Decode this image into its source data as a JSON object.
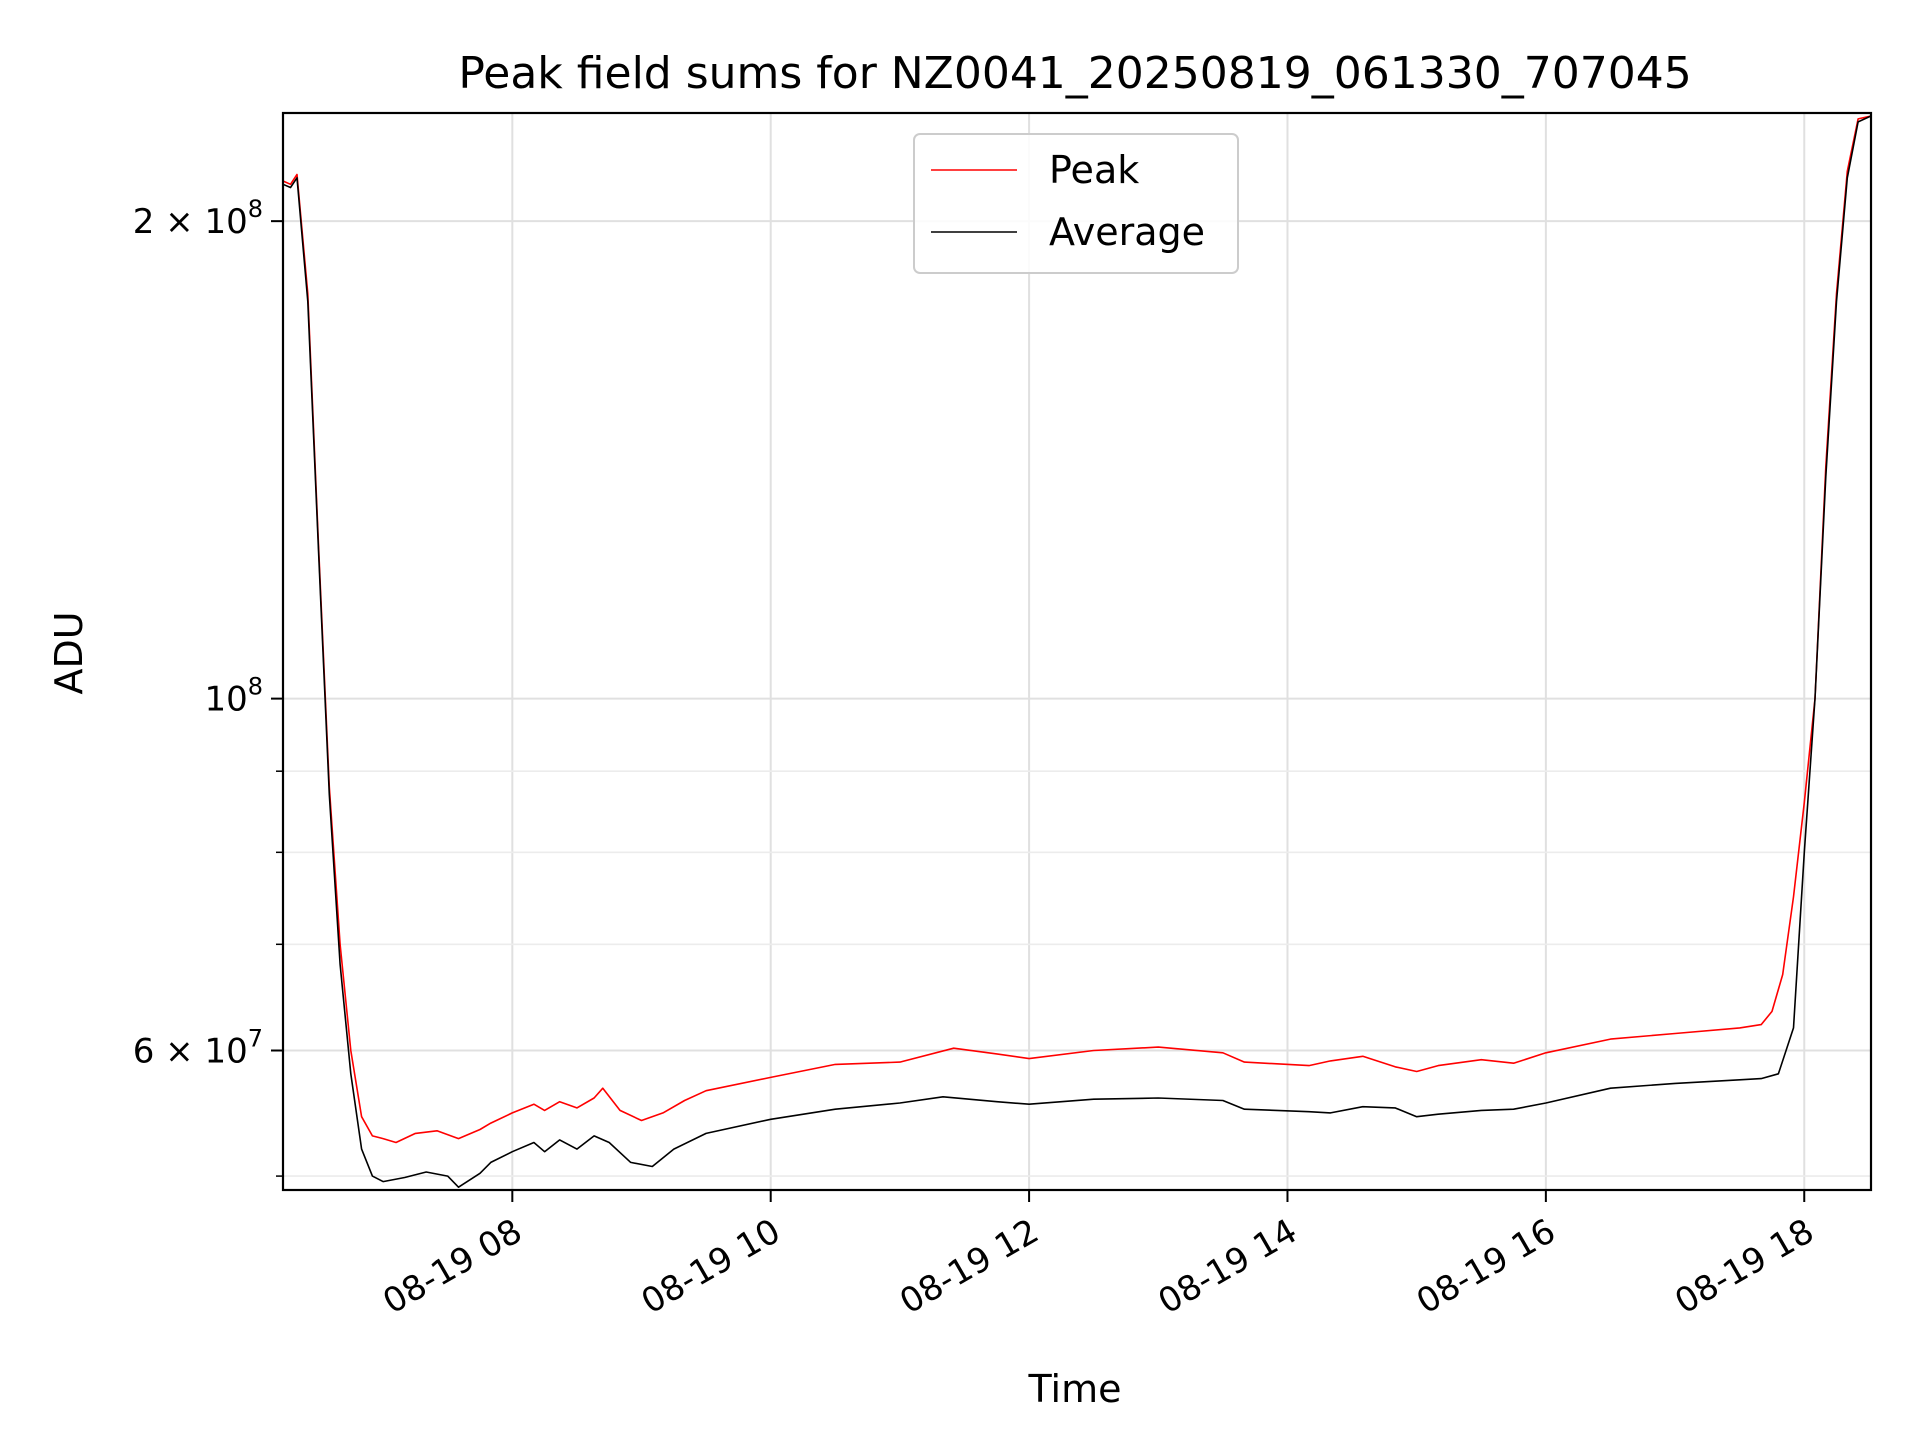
{
  "chart_data": {
    "type": "line",
    "title": "Peak field sums for NZ0041_20250819_061330_707045",
    "xlabel": "Time",
    "ylabel": "ADU",
    "x_start": "2025-08-19 06:13:30",
    "xlim": [
      "2025-08-19 06:13:30",
      "2025-08-19 18:31:00"
    ],
    "ylim": [
      49000000,
      234000000
    ],
    "yscale": "log",
    "grid": true,
    "legend": "top-center",
    "x_ticks": [
      "08-19 08",
      "08-19 10",
      "08-19 12",
      "08-19 14",
      "08-19 16",
      "08-19 18"
    ],
    "y_ticks": [
      {
        "value": 200000000,
        "base": "2 × 10",
        "exp": "8"
      },
      {
        "value": 100000000,
        "base": "10",
        "exp": "8"
      },
      {
        "value": 60000000,
        "base": "6 × 10",
        "exp": "7"
      }
    ],
    "y_minor_ticks": [
      50000000,
      70000000,
      80000000,
      90000000
    ],
    "series": [
      {
        "name": "Peak",
        "color": "#ff0000",
        "x": [
          "2025-08-19 06:13:30",
          "2025-08-19 06:17:00",
          "2025-08-19 06:20:00",
          "2025-08-19 06:25:00",
          "2025-08-19 06:30:00",
          "2025-08-19 06:35:00",
          "2025-08-19 06:40:00",
          "2025-08-19 06:45:00",
          "2025-08-19 06:50:00",
          "2025-08-19 06:55:00",
          "2025-08-19 07:00:00",
          "2025-08-19 07:06:00",
          "2025-08-19 07:15:00",
          "2025-08-19 07:25:00",
          "2025-08-19 07:35:00",
          "2025-08-19 07:45:00",
          "2025-08-19 07:50:00",
          "2025-08-19 08:00:00",
          "2025-08-19 08:10:00",
          "2025-08-19 08:15:00",
          "2025-08-19 08:22:00",
          "2025-08-19 08:30:00",
          "2025-08-19 08:38:00",
          "2025-08-19 08:42:00",
          "2025-08-19 08:50:00",
          "2025-08-19 09:00:00",
          "2025-08-19 09:10:00",
          "2025-08-19 09:20:00",
          "2025-08-19 09:30:00",
          "2025-08-19 10:00:00",
          "2025-08-19 10:30:00",
          "2025-08-19 11:00:00",
          "2025-08-19 11:25:00",
          "2025-08-19 11:45:00",
          "2025-08-19 12:00:00",
          "2025-08-19 12:30:00",
          "2025-08-19 13:00:00",
          "2025-08-19 13:30:00",
          "2025-08-19 13:40:00",
          "2025-08-19 14:10:00",
          "2025-08-19 14:20:00",
          "2025-08-19 14:35:00",
          "2025-08-19 14:50:00",
          "2025-08-19 15:00:00",
          "2025-08-19 15:10:00",
          "2025-08-19 15:30:00",
          "2025-08-19 15:45:00",
          "2025-08-19 16:00:00",
          "2025-08-19 16:30:00",
          "2025-08-19 17:00:00",
          "2025-08-19 17:30:00",
          "2025-08-19 17:40:00",
          "2025-08-19 17:45:00",
          "2025-08-19 17:50:00",
          "2025-08-19 17:55:00",
          "2025-08-19 18:00:00",
          "2025-08-19 18:05:00",
          "2025-08-19 18:10:00",
          "2025-08-19 18:15:00",
          "2025-08-19 18:20:00",
          "2025-08-19 18:25:00",
          "2025-08-19 18:31:00"
        ],
        "y": [
          212000000,
          211000000,
          214000000,
          180000000,
          125000000,
          88000000,
          70000000,
          60000000,
          54500000,
          53000000,
          52800000,
          52500000,
          53200000,
          53400000,
          52800000,
          53500000,
          54000000,
          54800000,
          55500000,
          55000000,
          55700000,
          55200000,
          56000000,
          56800000,
          55000000,
          54200000,
          54800000,
          55800000,
          56600000,
          57700000,
          58800000,
          59000000,
          60200000,
          59700000,
          59300000,
          60000000,
          60300000,
          59800000,
          59000000,
          58700000,
          59100000,
          59500000,
          58600000,
          58200000,
          58700000,
          59200000,
          58900000,
          59800000,
          61000000,
          61500000,
          62000000,
          62300000,
          63500000,
          67000000,
          75000000,
          86000000,
          100000000,
          140000000,
          180000000,
          215000000,
          232000000,
          233000000
        ]
      },
      {
        "name": "Average",
        "color": "#000000",
        "x": [
          "2025-08-19 06:13:30",
          "2025-08-19 06:17:00",
          "2025-08-19 06:20:00",
          "2025-08-19 06:25:00",
          "2025-08-19 06:30:00",
          "2025-08-19 06:35:00",
          "2025-08-19 06:40:00",
          "2025-08-19 06:45:00",
          "2025-08-19 06:50:00",
          "2025-08-19 06:55:00",
          "2025-08-19 07:00:00",
          "2025-08-19 07:10:00",
          "2025-08-19 07:20:00",
          "2025-08-19 07:30:00",
          "2025-08-19 07:35:00",
          "2025-08-19 07:45:00",
          "2025-08-19 07:50:00",
          "2025-08-19 08:00:00",
          "2025-08-19 08:10:00",
          "2025-08-19 08:15:00",
          "2025-08-19 08:22:00",
          "2025-08-19 08:30:00",
          "2025-08-19 08:38:00",
          "2025-08-19 08:45:00",
          "2025-08-19 08:55:00",
          "2025-08-19 09:05:00",
          "2025-08-19 09:15:00",
          "2025-08-19 09:30:00",
          "2025-08-19 10:00:00",
          "2025-08-19 10:30:00",
          "2025-08-19 11:00:00",
          "2025-08-19 11:20:00",
          "2025-08-19 11:45:00",
          "2025-08-19 12:00:00",
          "2025-08-19 12:30:00",
          "2025-08-19 13:00:00",
          "2025-08-19 13:30:00",
          "2025-08-19 13:40:00",
          "2025-08-19 14:10:00",
          "2025-08-19 14:20:00",
          "2025-08-19 14:35:00",
          "2025-08-19 14:50:00",
          "2025-08-19 15:00:00",
          "2025-08-19 15:10:00",
          "2025-08-19 15:30:00",
          "2025-08-19 15:45:00",
          "2025-08-19 16:00:00",
          "2025-08-19 16:30:00",
          "2025-08-19 17:00:00",
          "2025-08-19 17:30:00",
          "2025-08-19 17:40:00",
          "2025-08-19 17:48:00",
          "2025-08-19 17:55:00",
          "2025-08-19 18:00:00",
          "2025-08-19 18:05:00",
          "2025-08-19 18:10:00",
          "2025-08-19 18:15:00",
          "2025-08-19 18:20:00",
          "2025-08-19 18:25:00",
          "2025-08-19 18:31:00"
        ],
        "y": [
          211000000,
          210000000,
          213000000,
          178000000,
          124000000,
          87000000,
          68000000,
          58000000,
          52000000,
          50000000,
          49600000,
          49900000,
          50300000,
          50000000,
          49200000,
          50200000,
          51000000,
          51800000,
          52500000,
          51800000,
          52700000,
          52000000,
          53000000,
          52500000,
          51000000,
          50700000,
          52000000,
          53200000,
          54300000,
          55100000,
          55600000,
          56100000,
          55700000,
          55500000,
          55900000,
          56000000,
          55800000,
          55100000,
          54900000,
          54800000,
          55300000,
          55200000,
          54500000,
          54700000,
          55000000,
          55100000,
          55600000,
          56800000,
          57200000,
          57500000,
          57600000,
          58000000,
          62000000,
          80000000,
          100000000,
          138000000,
          178000000,
          213000000,
          231000000,
          233000000
        ]
      }
    ]
  }
}
